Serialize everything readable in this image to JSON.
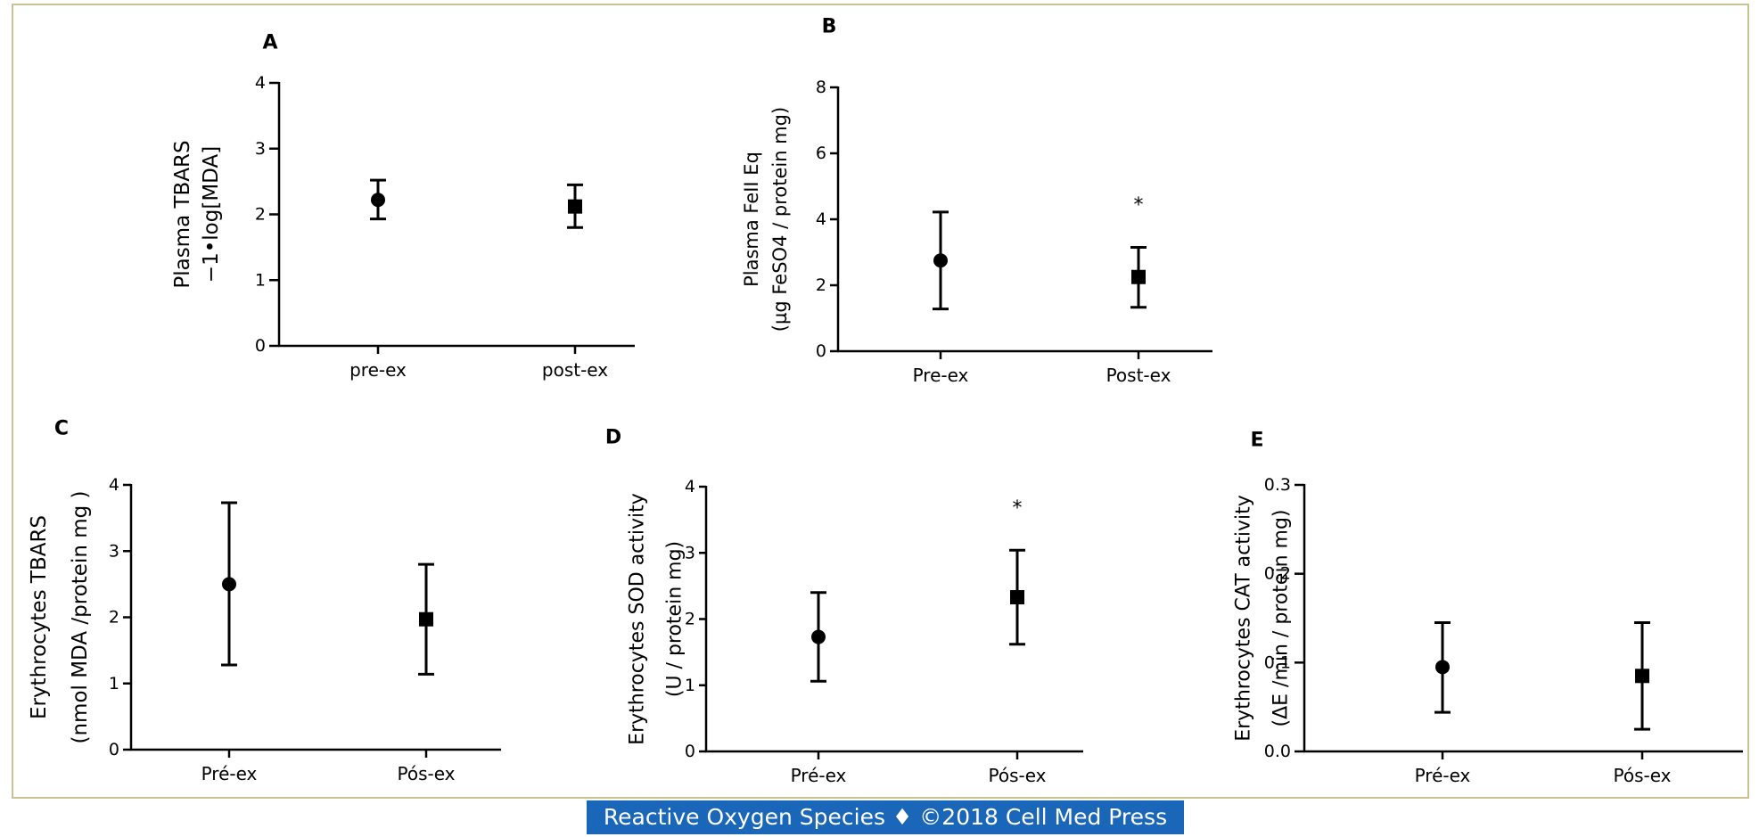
{
  "footer": {
    "text": "Reactive Oxygen Species ♦ ©2018 Cell Med Press",
    "bg_color": "#1a66b8"
  },
  "chart_data": [
    {
      "panel": "A",
      "type": "scatter",
      "categories": [
        "pre-ex",
        "post-ex"
      ],
      "ylabel": [
        "Plasma TBARS",
        "−1•log[MDA]"
      ],
      "ylim": [
        0,
        4
      ],
      "yticks": [
        0,
        1,
        2,
        3,
        4
      ],
      "grid": false,
      "points": [
        {
          "category": "pre-ex",
          "marker": "circle",
          "value": 2.22,
          "error_low": 1.93,
          "error_high": 2.52,
          "annotation": ""
        },
        {
          "category": "post-ex",
          "marker": "square",
          "value": 2.12,
          "error_low": 1.8,
          "error_high": 2.45,
          "annotation": ""
        }
      ]
    },
    {
      "panel": "B",
      "type": "scatter",
      "categories": [
        "Pre-ex",
        "Post-ex"
      ],
      "ylabel": [
        "Plasma FeII Eq",
        "(µg FeSO4 / protein mg)"
      ],
      "ylim": [
        0,
        8
      ],
      "yticks": [
        0,
        2,
        4,
        6,
        8
      ],
      "grid": false,
      "points": [
        {
          "category": "Pre-ex",
          "marker": "circle",
          "value": 2.75,
          "error_low": 1.28,
          "error_high": 4.22,
          "annotation": ""
        },
        {
          "category": "Post-ex",
          "marker": "square",
          "value": 2.25,
          "error_low": 1.33,
          "error_high": 3.15,
          "annotation": "*"
        }
      ]
    },
    {
      "panel": "C",
      "type": "scatter",
      "categories": [
        "Pré-ex",
        "Pós-ex"
      ],
      "ylabel": [
        "Erythrocytes TBARS",
        "(nmol MDA /protein mg )"
      ],
      "ylim": [
        0,
        4
      ],
      "yticks": [
        0,
        1,
        2,
        3,
        4
      ],
      "grid": false,
      "points": [
        {
          "category": "Pré-ex",
          "marker": "circle",
          "value": 2.5,
          "error_low": 1.28,
          "error_high": 3.73,
          "annotation": ""
        },
        {
          "category": "Pós-ex",
          "marker": "square",
          "value": 1.97,
          "error_low": 1.14,
          "error_high": 2.8,
          "annotation": ""
        }
      ]
    },
    {
      "panel": "D",
      "type": "scatter",
      "categories": [
        "Pré-ex",
        "Pós-ex"
      ],
      "ylabel": [
        "Erythrocytes SOD activity",
        "(U / protein mg)"
      ],
      "ylim": [
        0,
        4
      ],
      "yticks": [
        0,
        1,
        2,
        3,
        4
      ],
      "grid": false,
      "points": [
        {
          "category": "Pré-ex",
          "marker": "circle",
          "value": 1.73,
          "error_low": 1.06,
          "error_high": 2.4,
          "annotation": ""
        },
        {
          "category": "Pós-ex",
          "marker": "square",
          "value": 2.33,
          "error_low": 1.62,
          "error_high": 3.04,
          "annotation": "*"
        }
      ]
    },
    {
      "panel": "E",
      "type": "scatter",
      "categories": [
        "Pré-ex",
        "Pós-ex"
      ],
      "ylabel": [
        "Erythrocytes CAT activity",
        "(ΔE /min / protein mg)"
      ],
      "ylim": [
        0,
        0.3
      ],
      "yticks": [
        "0.0",
        "0.1",
        "0.2",
        "0.3"
      ],
      "grid": false,
      "points": [
        {
          "category": "Pré-ex",
          "marker": "circle",
          "value": 0.095,
          "error_low": 0.044,
          "error_high": 0.145,
          "annotation": ""
        },
        {
          "category": "Pós-ex",
          "marker": "square",
          "value": 0.085,
          "error_low": 0.025,
          "error_high": 0.145,
          "annotation": ""
        }
      ]
    }
  ]
}
